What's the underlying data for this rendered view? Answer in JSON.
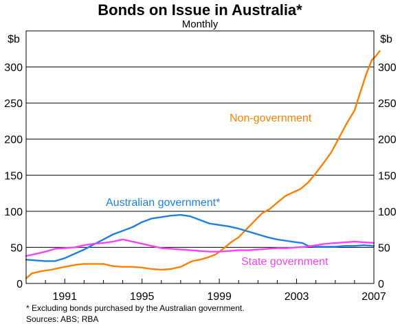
{
  "chart_data": {
    "type": "line",
    "title": "Bonds on Issue in Australia*",
    "subtitle": "Monthly",
    "y_unit_left": "$b",
    "y_unit_right": "$b",
    "ylim": [
      0,
      350
    ],
    "y_ticks": [
      0,
      50,
      100,
      150,
      200,
      250,
      300
    ],
    "xlim": [
      1989.0,
      2007.0
    ],
    "x_ticks": [
      1991,
      1995,
      1999,
      2003,
      2007
    ],
    "grid": true,
    "series": [
      {
        "name": "Non-government",
        "color": "#ff7f00",
        "points": [
          [
            1989.0,
            7
          ],
          [
            1989.3,
            14
          ],
          [
            1989.8,
            17
          ],
          [
            1990.3,
            19
          ],
          [
            1990.8,
            22
          ],
          [
            1991.2,
            24
          ],
          [
            1991.6,
            26
          ],
          [
            1992.0,
            27
          ],
          [
            1992.5,
            27
          ],
          [
            1993.0,
            27
          ],
          [
            1993.5,
            24
          ],
          [
            1994.0,
            23
          ],
          [
            1994.5,
            23
          ],
          [
            1995.0,
            22
          ],
          [
            1995.5,
            20
          ],
          [
            1996.0,
            19
          ],
          [
            1996.5,
            20
          ],
          [
            1996.8,
            22
          ],
          [
            1997.0,
            23
          ],
          [
            1997.3,
            27
          ],
          [
            1997.6,
            31
          ],
          [
            1998.0,
            33
          ],
          [
            1998.4,
            36
          ],
          [
            1998.8,
            40
          ],
          [
            1999.2,
            48
          ],
          [
            1999.6,
            57
          ],
          [
            2000.0,
            64
          ],
          [
            2000.4,
            75
          ],
          [
            2000.8,
            86
          ],
          [
            2001.2,
            97
          ],
          [
            2001.6,
            103
          ],
          [
            2002.0,
            112
          ],
          [
            2002.4,
            121
          ],
          [
            2002.8,
            126
          ],
          [
            2003.2,
            131
          ],
          [
            2003.6,
            140
          ],
          [
            2004.0,
            153
          ],
          [
            2004.4,
            167
          ],
          [
            2004.8,
            182
          ],
          [
            2005.2,
            202
          ],
          [
            2005.6,
            222
          ],
          [
            2006.0,
            240
          ],
          [
            2006.3,
            265
          ],
          [
            2006.6,
            290
          ],
          [
            2006.9,
            310
          ],
          [
            2007.1,
            315
          ],
          [
            2007.3,
            322
          ]
        ]
      },
      {
        "name": "Australian government*",
        "color": "#1f7fdf",
        "points": [
          [
            1989.0,
            33
          ],
          [
            1989.5,
            32
          ],
          [
            1990.0,
            31
          ],
          [
            1990.5,
            31
          ],
          [
            1991.0,
            35
          ],
          [
            1991.5,
            41
          ],
          [
            1992.0,
            47
          ],
          [
            1992.5,
            54
          ],
          [
            1993.0,
            61
          ],
          [
            1993.5,
            68
          ],
          [
            1994.0,
            73
          ],
          [
            1994.5,
            78
          ],
          [
            1995.0,
            85
          ],
          [
            1995.5,
            90
          ],
          [
            1996.0,
            92
          ],
          [
            1996.5,
            94
          ],
          [
            1997.0,
            95
          ],
          [
            1997.5,
            93
          ],
          [
            1998.0,
            88
          ],
          [
            1998.5,
            83
          ],
          [
            1999.0,
            81
          ],
          [
            1999.5,
            79
          ],
          [
            2000.0,
            76
          ],
          [
            2000.5,
            72
          ],
          [
            2001.0,
            68
          ],
          [
            2001.5,
            64
          ],
          [
            2002.0,
            61
          ],
          [
            2002.5,
            59
          ],
          [
            2003.0,
            57
          ],
          [
            2003.3,
            56
          ],
          [
            2003.6,
            52
          ],
          [
            2004.0,
            51
          ],
          [
            2004.5,
            51
          ],
          [
            2005.0,
            51
          ],
          [
            2005.5,
            52
          ],
          [
            2006.0,
            52
          ],
          [
            2006.5,
            53
          ],
          [
            2007.0,
            52
          ]
        ]
      },
      {
        "name": "State government",
        "color": "#ff3fff",
        "points": [
          [
            1989.0,
            38
          ],
          [
            1989.5,
            41
          ],
          [
            1990.0,
            44
          ],
          [
            1990.5,
            48
          ],
          [
            1991.0,
            49
          ],
          [
            1991.5,
            50
          ],
          [
            1992.0,
            53
          ],
          [
            1992.5,
            55
          ],
          [
            1993.0,
            56
          ],
          [
            1993.5,
            58
          ],
          [
            1994.0,
            61
          ],
          [
            1994.5,
            58
          ],
          [
            1995.0,
            55
          ],
          [
            1995.5,
            52
          ],
          [
            1996.0,
            49
          ],
          [
            1996.5,
            48
          ],
          [
            1997.0,
            47
          ],
          [
            1997.5,
            46
          ],
          [
            1998.0,
            45
          ],
          [
            1998.5,
            44
          ],
          [
            1999.0,
            44
          ],
          [
            1999.5,
            45
          ],
          [
            2000.0,
            46
          ],
          [
            2000.5,
            46
          ],
          [
            2001.0,
            47
          ],
          [
            2001.5,
            48
          ],
          [
            2002.0,
            49
          ],
          [
            2002.5,
            49
          ],
          [
            2003.0,
            50
          ],
          [
            2003.5,
            51
          ],
          [
            2004.0,
            53
          ],
          [
            2004.5,
            55
          ],
          [
            2005.0,
            56
          ],
          [
            2005.5,
            57
          ],
          [
            2006.0,
            58
          ],
          [
            2006.5,
            57
          ],
          [
            2007.0,
            56
          ]
        ]
      }
    ],
    "annotations": [
      {
        "text": "Non-government",
        "series": "Non-government"
      },
      {
        "text": "Australian government*",
        "series": "Australian government*"
      },
      {
        "text": "State government",
        "series": "State government"
      }
    ],
    "footnotes": [
      "* Excluding bonds purchased by the Australian government.",
      "Sources: ABS; RBA"
    ]
  }
}
